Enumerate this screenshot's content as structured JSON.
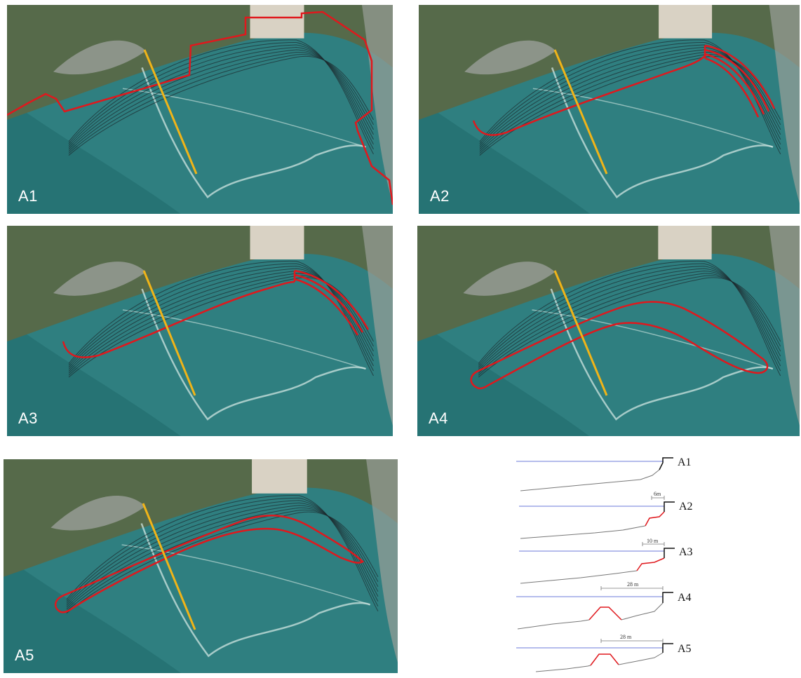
{
  "panels": [
    {
      "id": "p1",
      "label": "A1"
    },
    {
      "id": "p2",
      "label": "A2"
    },
    {
      "id": "p3",
      "label": "A3"
    },
    {
      "id": "p4",
      "label": "A4"
    },
    {
      "id": "p5",
      "label": "A5"
    }
  ],
  "sections": [
    {
      "label": "A1",
      "dimension": ""
    },
    {
      "label": "A2",
      "dimension": "6m"
    },
    {
      "label": "A3",
      "dimension": "10 m"
    },
    {
      "label": "A4",
      "dimension": "28 m"
    },
    {
      "label": "A5",
      "dimension": "28 m"
    }
  ],
  "colors": {
    "sea": "#2f7f80",
    "sea_deep": "#226a6c",
    "land": "#566a4a",
    "rock": "#9a9f98",
    "building": "#d9d2c4",
    "red": "#e0181d",
    "transect": "#f0b418",
    "contour": "#1c2a2e",
    "water_line": "#6b78d8",
    "profile_line": "#777777"
  }
}
